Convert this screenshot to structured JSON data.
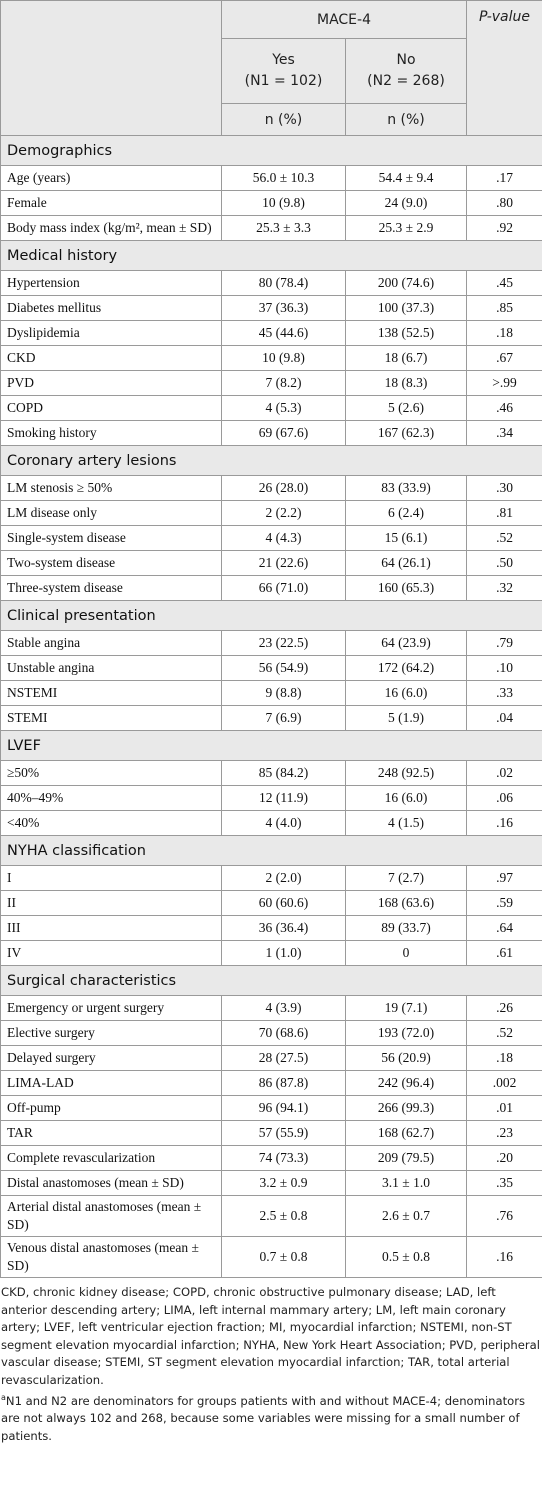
{
  "header": {
    "group": "MACE-4",
    "pvalue": "P-value",
    "columns": [
      {
        "label": "Yes",
        "n": "(N1 = 102)",
        "unit": "n (%)"
      },
      {
        "label": "No",
        "n": "(N2 = 268)",
        "unit": "n (%)"
      }
    ]
  },
  "sections": [
    {
      "title": "Demographics",
      "rows": [
        [
          "Age (years)",
          "56.0 ± 10.3",
          "54.4 ± 9.4",
          ".17"
        ],
        [
          "Female",
          "10 (9.8)",
          "24 (9.0)",
          ".80"
        ],
        [
          "Body mass index (kg/m², mean ± SD)",
          "25.3 ± 3.3",
          "25.3 ± 2.9",
          ".92"
        ]
      ]
    },
    {
      "title": "Medical history",
      "rows": [
        [
          "Hypertension",
          "80 (78.4)",
          "200 (74.6)",
          ".45"
        ],
        [
          "Diabetes mellitus",
          "37 (36.3)",
          "100 (37.3)",
          ".85"
        ],
        [
          "Dyslipidemia",
          "45 (44.6)",
          "138 (52.5)",
          ".18"
        ],
        [
          "CKD",
          "10 (9.8)",
          "18 (6.7)",
          ".67"
        ],
        [
          "PVD",
          "7 (8.2)",
          "18 (8.3)",
          ">.99"
        ],
        [
          "COPD",
          "4 (5.3)",
          "5 (2.6)",
          ".46"
        ],
        [
          "Smoking history",
          "69 (67.6)",
          "167 (62.3)",
          ".34"
        ]
      ]
    },
    {
      "title": "Coronary artery lesions",
      "rows": [
        [
          "LM stenosis ≥ 50%",
          "26 (28.0)",
          "83 (33.9)",
          ".30"
        ],
        [
          "LM disease only",
          "2 (2.2)",
          "6 (2.4)",
          ".81"
        ],
        [
          "Single-system disease",
          "4 (4.3)",
          "15 (6.1)",
          ".52"
        ],
        [
          "Two-system disease",
          "21 (22.6)",
          "64 (26.1)",
          ".50"
        ],
        [
          "Three-system disease",
          "66 (71.0)",
          "160 (65.3)",
          ".32"
        ]
      ]
    },
    {
      "title": "Clinical presentation",
      "rows": [
        [
          "Stable angina",
          "23 (22.5)",
          "64 (23.9)",
          ".79"
        ],
        [
          "Unstable angina",
          "56 (54.9)",
          "172 (64.2)",
          ".10"
        ],
        [
          "NSTEMI",
          "9 (8.8)",
          "16 (6.0)",
          ".33"
        ],
        [
          "STEMI",
          "7 (6.9)",
          "5 (1.9)",
          ".04"
        ]
      ]
    },
    {
      "title": "LVEF",
      "rows": [
        [
          "≥50%",
          "85 (84.2)",
          "248 (92.5)",
          ".02"
        ],
        [
          "40%–49%",
          "12 (11.9)",
          "16 (6.0)",
          ".06"
        ],
        [
          "<40%",
          "4 (4.0)",
          "4 (1.5)",
          ".16"
        ]
      ]
    },
    {
      "title": "NYHA classification",
      "rows": [
        [
          "I",
          "2 (2.0)",
          "7 (2.7)",
          ".97"
        ],
        [
          "II",
          "60 (60.6)",
          "168 (63.6)",
          ".59"
        ],
        [
          "III",
          "36 (36.4)",
          "89 (33.7)",
          ".64"
        ],
        [
          "IV",
          "1 (1.0)",
          "0",
          ".61"
        ]
      ]
    },
    {
      "title": "Surgical characteristics",
      "rows": [
        [
          "Emergency or urgent surgery",
          "4 (3.9)",
          "19 (7.1)",
          ".26"
        ],
        [
          "Elective surgery",
          "70 (68.6)",
          "193 (72.0)",
          ".52"
        ],
        [
          "Delayed surgery",
          "28 (27.5)",
          "56 (20.9)",
          ".18"
        ],
        [
          "LIMA-LAD",
          "86 (87.8)",
          "242 (96.4)",
          ".002"
        ],
        [
          "Off-pump",
          "96 (94.1)",
          "266 (99.3)",
          ".01"
        ],
        [
          "TAR",
          "57 (55.9)",
          "168 (62.7)",
          ".23"
        ],
        [
          "Complete revascularization",
          "74 (73.3)",
          "209 (79.5)",
          ".20"
        ],
        [
          "Distal anastomoses (mean ± SD)",
          "3.2 ± 0.9",
          "3.1 ± 1.0",
          ".35"
        ],
        [
          "Arterial distal anastomoses (mean ± SD)",
          "2.5 ± 0.8",
          "2.6 ± 0.7",
          ".76"
        ],
        [
          "Venous distal anastomoses (mean ± SD)",
          "0.7 ± 0.8",
          "0.5 ± 0.8",
          ".16"
        ]
      ]
    }
  ],
  "footnotes": {
    "abbreviations": "CKD, chronic kidney disease; COPD, chronic obstructive pulmonary disease; LAD, left anterior descending artery; LIMA, left internal mammary artery; LM, left main coronary artery; LVEF, left ventricular ejection fraction; MI, myocardial infarction; NSTEMI, non-ST segment elevation myocardial infarction; NYHA, New York Heart Association; PVD, peripheral vascular disease; STEMI, ST segment elevation myocardial infarction; TAR, total arterial revascularization.",
    "marker": "a",
    "note": "N1 and N2 are denominators for groups patients with and without MACE-4; denominators are not always 102 and 268, because some variables were missing for a small number of patients."
  }
}
